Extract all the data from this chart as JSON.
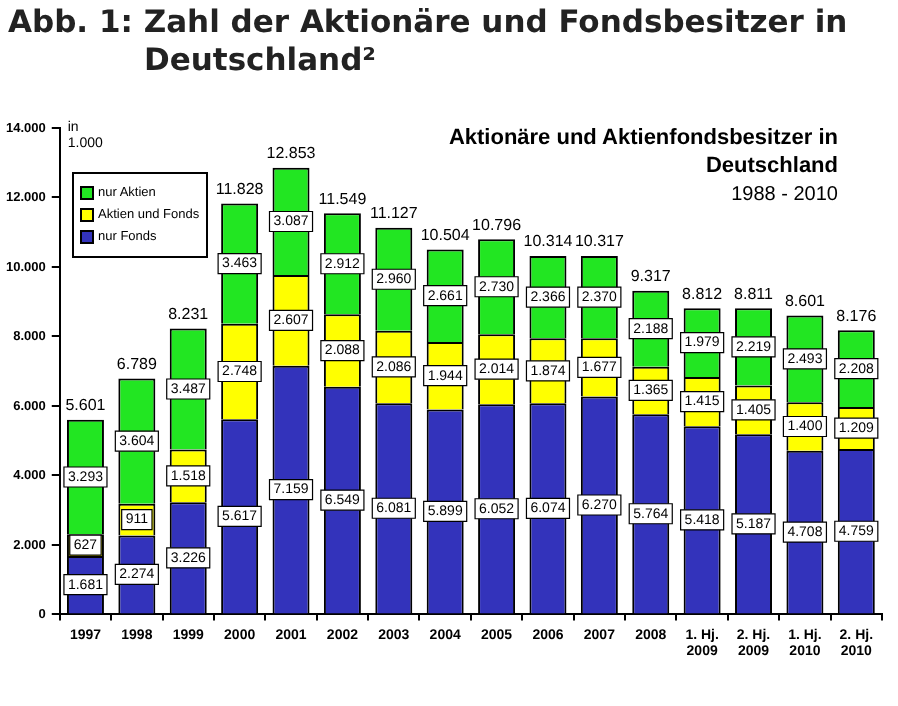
{
  "chart_data": {
    "type": "bar",
    "stacked": true,
    "title": "Abb. 1: Zahl der Aktionäre und Fondsbesitzer in Deutschland²",
    "subtitle": "Aktionäre und Aktienfondsbesitzer in Deutschland",
    "annotations": [
      "1988 - 2010"
    ],
    "ylabel": "in 1.000",
    "categories": [
      "1997",
      "1998",
      "1999",
      "2000",
      "2001",
      "2002",
      "2003",
      "2004",
      "2005",
      "2006",
      "2007",
      "2008",
      "1. Hj. 2009",
      "2. Hj. 2009",
      "1. Hj. 2010",
      "2. Hj. 2010"
    ],
    "series": [
      {
        "name": "nur Fonds",
        "color": "#3333bb",
        "values": [
          1681,
          2274,
          3226,
          5617,
          7159,
          6549,
          6081,
          5899,
          6052,
          6074,
          6270,
          5764,
          5418,
          5187,
          4708,
          4759
        ],
        "value_labels": [
          "1.681",
          "2.274",
          "3.226",
          "5.617",
          "7.159",
          "6.549",
          "6.081",
          "5.899",
          "6.052",
          "6.074",
          "6.270",
          "5.764",
          "5.418",
          "5.187",
          "4.708",
          "4.759"
        ]
      },
      {
        "name": "Aktien und Fonds",
        "color": "#ffff00",
        "values": [
          627,
          911,
          1518,
          2748,
          2607,
          2088,
          2086,
          1944,
          2014,
          1874,
          1677,
          1365,
          1415,
          1405,
          1400,
          1209
        ],
        "value_labels": [
          "627",
          "911",
          "1.518",
          "2.748",
          "2.607",
          "2.088",
          "2.086",
          "1.944",
          "2.014",
          "1.874",
          "1.677",
          "1.365",
          "1.415",
          "1.405",
          "1.400",
          "1.209"
        ]
      },
      {
        "name": "nur Aktien",
        "color": "#22e622",
        "values": [
          3293,
          3604,
          3487,
          3463,
          3087,
          2912,
          2960,
          2661,
          2730,
          2366,
          2370,
          2188,
          1979,
          2219,
          2493,
          2208
        ],
        "value_labels": [
          "3.293",
          "3.604",
          "3.487",
          "3.463",
          "3.087",
          "2.912",
          "2.960",
          "2.661",
          "2.730",
          "2.366",
          "2.370",
          "2.188",
          "1.979",
          "2.219",
          "2.493",
          "2.208"
        ]
      }
    ],
    "totals": [
      "5.601",
      "6.789",
      "8.231",
      "11.828",
      "12.853",
      "11.549",
      "11.127",
      "10.504",
      "10.796",
      "10.314",
      "10.317",
      "9.317",
      "8.812",
      "8.811",
      "8.601",
      "8.176"
    ],
    "ylim": [
      0,
      14000
    ],
    "yticks": [
      0,
      {
        "value": 2000,
        "label": "2.000"
      },
      {
        "value": 4000,
        "label": "4.000"
      },
      {
        "value": 6000,
        "label": "6.000"
      },
      {
        "value": 8000,
        "label": "8.000"
      },
      {
        "value": 10000,
        "label": "10.000"
      },
      {
        "value": 12000,
        "label": "12.000"
      },
      {
        "value": 14000,
        "label": "14.000"
      }
    ],
    "grid": false,
    "legend": "top left"
  }
}
